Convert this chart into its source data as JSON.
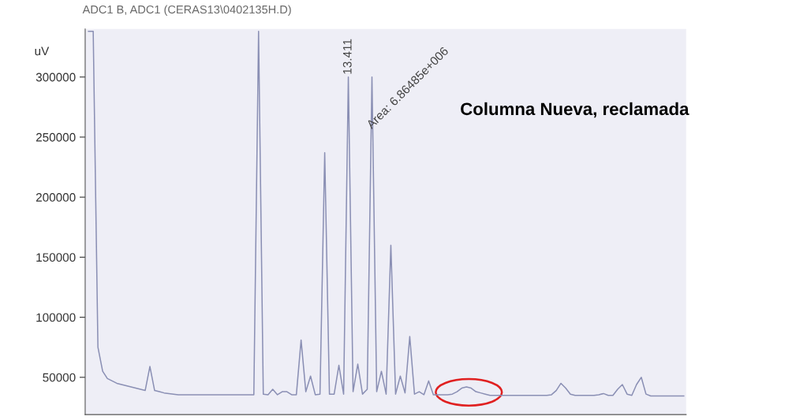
{
  "chart_data": {
    "type": "line",
    "title": "ADC1 B, ADC1 (CERAS13\\0402135H.D)",
    "ylabel": "uV",
    "categories": [
      null,
      null,
      null,
      null,
      null,
      null,
      null,
      null,
      null,
      null,
      null,
      null,
      null,
      null,
      null,
      null,
      null,
      null,
      null,
      null,
      null,
      null,
      null,
      null,
      null,
      null,
      null,
      null,
      null,
      null,
      null,
      null,
      null,
      null,
      null,
      null,
      null,
      null,
      null,
      null,
      null,
      null,
      null,
      null,
      null,
      null,
      null,
      null,
      null,
      null,
      null,
      null,
      null,
      null,
      null,
      null,
      null,
      null,
      null,
      null,
      null,
      null,
      null,
      null,
      null,
      null,
      null,
      null,
      null,
      null,
      null,
      null,
      null,
      null,
      null,
      null,
      null,
      null,
      null,
      null,
      null,
      null,
      null,
      null,
      null,
      null,
      null,
      null,
      null,
      null,
      null,
      null,
      null,
      null,
      null,
      null,
      null,
      null,
      null,
      null,
      null,
      null,
      null,
      null,
      null,
      null,
      null,
      null,
      null,
      null,
      null,
      null,
      null,
      null,
      null,
      null,
      null,
      null,
      null,
      null,
      null,
      null,
      null,
      null,
      null,
      null,
      null
    ],
    "series": [
      {
        "color": "#8a8fb4",
        "values": [
          338000,
          338000,
          75000,
          55000,
          49000,
          47000,
          45000,
          44000,
          43000,
          42000,
          41000,
          40000,
          39000,
          59000,
          39000,
          38000,
          37000,
          36500,
          36000,
          35500,
          35500,
          35500,
          35500,
          35500,
          35500,
          35500,
          35500,
          35500,
          35500,
          35500,
          35500,
          35500,
          35500,
          35500,
          35500,
          35500,
          338000,
          36000,
          35500,
          40000,
          35500,
          38000,
          38000,
          35500,
          35500,
          81000,
          38000,
          51000,
          35500,
          36000,
          237000,
          36000,
          36000,
          60000,
          36000,
          300000,
          38000,
          61000,
          36000,
          40000,
          300000,
          38000,
          55000,
          36000,
          160000,
          36000,
          51000,
          37000,
          84000,
          36000,
          38000,
          35500,
          47000,
          35500,
          35500,
          35500,
          35500,
          36000,
          38000,
          41000,
          42000,
          41000,
          38000,
          37000,
          36000,
          35000,
          35000,
          35000,
          35000,
          35000,
          35000,
          35000,
          35000,
          35000,
          35000,
          35000,
          35000,
          35000,
          35500,
          39000,
          45000,
          41000,
          36000,
          35000,
          35000,
          35000,
          35000,
          35000,
          35500,
          36500,
          35000,
          35000,
          40000,
          44000,
          36000,
          35000,
          44000,
          50000,
          36000,
          34500,
          34500,
          34500,
          34500,
          34500,
          34500,
          34500,
          34500
        ]
      }
    ],
    "ylim": [
      19000,
      340000
    ],
    "yticks": [
      50000,
      100000,
      150000,
      200000,
      250000,
      300000
    ],
    "annotations": [
      "13.411",
      "Area: 6.86485e+006",
      "Columna Nueva, reclamada"
    ],
    "grid": false,
    "legend": false,
    "tick_labels": "y"
  }
}
